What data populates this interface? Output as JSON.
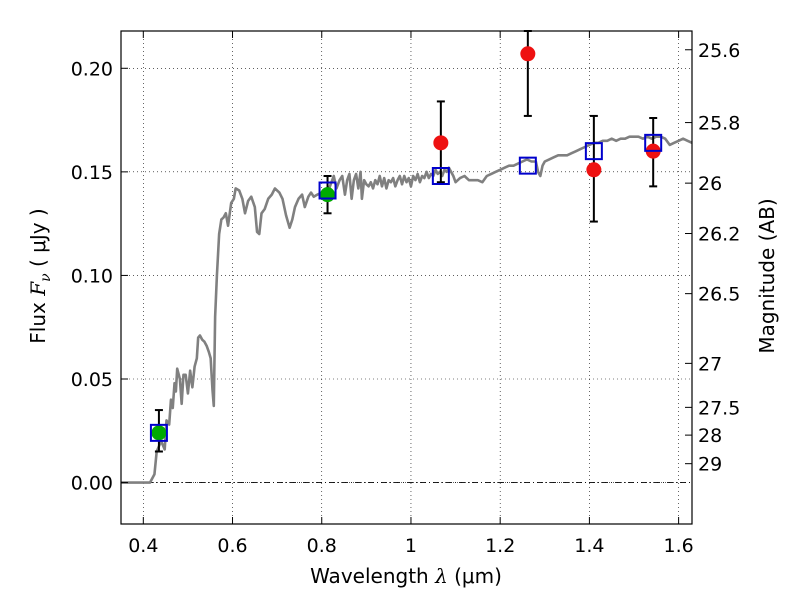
{
  "chart_data": {
    "type": "scatter",
    "xlabel_prefix": "Wavelength",
    "xlabel_symbol": "λ",
    "xlabel_unit": "(μm)",
    "ylabel_prefix": "Flux",
    "ylabel_symbol": "F",
    "ylabel_sub": "ν",
    "ylabel_unit": "( μJy )",
    "y2label": "Magnitude (AB)",
    "xlim": [
      0.35,
      1.63
    ],
    "ylim": [
      -0.02,
      0.218
    ],
    "grid": true,
    "x_ticks": [
      {
        "value": 0.4,
        "label": "0.4"
      },
      {
        "value": 0.6,
        "label": "0.6"
      },
      {
        "value": 0.8,
        "label": "0.8"
      },
      {
        "value": 1.0,
        "label": "1"
      },
      {
        "value": 1.2,
        "label": "1.2"
      },
      {
        "value": 1.4,
        "label": "1.4"
      },
      {
        "value": 1.6,
        "label": "1.6"
      }
    ],
    "y_ticks": [
      {
        "value": 0.0,
        "label": "0.00"
      },
      {
        "value": 0.05,
        "label": "0.05"
      },
      {
        "value": 0.1,
        "label": "0.10"
      },
      {
        "value": 0.15,
        "label": "0.15"
      },
      {
        "value": 0.2,
        "label": "0.20"
      }
    ],
    "y2_ticks": [
      {
        "value": 25.6,
        "label": "25.6"
      },
      {
        "value": 25.8,
        "label": "25.8"
      },
      {
        "value": 26.0,
        "label": "26"
      },
      {
        "value": 26.2,
        "label": "26.2"
      },
      {
        "value": 26.5,
        "label": "26.5"
      },
      {
        "value": 27.0,
        "label": "27"
      },
      {
        "value": 27.5,
        "label": "27.5"
      },
      {
        "value": 28.0,
        "label": "28"
      },
      {
        "value": 29.0,
        "label": "29"
      }
    ],
    "model_spectrum": {
      "color": "#808080",
      "points": [
        [
          0.35,
          0.0
        ],
        [
          0.415,
          0.0
        ],
        [
          0.425,
          0.004
        ],
        [
          0.43,
          0.015
        ],
        [
          0.44,
          0.02
        ],
        [
          0.448,
          0.016
        ],
        [
          0.452,
          0.03
        ],
        [
          0.458,
          0.028
        ],
        [
          0.462,
          0.04
        ],
        [
          0.466,
          0.036
        ],
        [
          0.47,
          0.048
        ],
        [
          0.473,
          0.044
        ],
        [
          0.476,
          0.055
        ],
        [
          0.482,
          0.05
        ],
        [
          0.486,
          0.038
        ],
        [
          0.49,
          0.052
        ],
        [
          0.495,
          0.052
        ],
        [
          0.5,
          0.043
        ],
        [
          0.505,
          0.054
        ],
        [
          0.508,
          0.049
        ],
        [
          0.51,
          0.046
        ],
        [
          0.515,
          0.056
        ],
        [
          0.52,
          0.06
        ],
        [
          0.523,
          0.07
        ],
        [
          0.527,
          0.071
        ],
        [
          0.532,
          0.069
        ],
        [
          0.537,
          0.068
        ],
        [
          0.542,
          0.066
        ],
        [
          0.547,
          0.063
        ],
        [
          0.551,
          0.06
        ],
        [
          0.555,
          0.045
        ],
        [
          0.558,
          0.037
        ],
        [
          0.561,
          0.08
        ],
        [
          0.565,
          0.1
        ],
        [
          0.57,
          0.12
        ],
        [
          0.575,
          0.127
        ],
        [
          0.58,
          0.128
        ],
        [
          0.585,
          0.13
        ],
        [
          0.59,
          0.124
        ],
        [
          0.597,
          0.135
        ],
        [
          0.603,
          0.137
        ],
        [
          0.607,
          0.142
        ],
        [
          0.615,
          0.141
        ],
        [
          0.622,
          0.137
        ],
        [
          0.628,
          0.13
        ],
        [
          0.635,
          0.136
        ],
        [
          0.642,
          0.138
        ],
        [
          0.65,
          0.133
        ],
        [
          0.655,
          0.121
        ],
        [
          0.66,
          0.12
        ],
        [
          0.665,
          0.13
        ],
        [
          0.672,
          0.132
        ],
        [
          0.68,
          0.137
        ],
        [
          0.688,
          0.139
        ],
        [
          0.695,
          0.142
        ],
        [
          0.705,
          0.14
        ],
        [
          0.712,
          0.137
        ],
        [
          0.72,
          0.129
        ],
        [
          0.728,
          0.123
        ],
        [
          0.734,
          0.127
        ],
        [
          0.74,
          0.133
        ],
        [
          0.748,
          0.137
        ],
        [
          0.756,
          0.139
        ],
        [
          0.762,
          0.133
        ],
        [
          0.77,
          0.138
        ],
        [
          0.776,
          0.14
        ],
        [
          0.782,
          0.138
        ],
        [
          0.79,
          0.139
        ],
        [
          0.8,
          0.14
        ],
        [
          0.81,
          0.142
        ],
        [
          0.815,
          0.141
        ],
        [
          0.82,
          0.144
        ],
        [
          0.827,
          0.148
        ],
        [
          0.833,
          0.142
        ],
        [
          0.84,
          0.146
        ],
        [
          0.846,
          0.148
        ],
        [
          0.852,
          0.139
        ],
        [
          0.857,
          0.146
        ],
        [
          0.862,
          0.149
        ],
        [
          0.867,
          0.137
        ],
        [
          0.872,
          0.146
        ],
        [
          0.877,
          0.149
        ],
        [
          0.882,
          0.142
        ],
        [
          0.887,
          0.15
        ],
        [
          0.89,
          0.137
        ],
        [
          0.895,
          0.146
        ],
        [
          0.9,
          0.144
        ],
        [
          0.905,
          0.143
        ],
        [
          0.91,
          0.145
        ],
        [
          0.915,
          0.142
        ],
        [
          0.92,
          0.146
        ],
        [
          0.925,
          0.144
        ],
        [
          0.93,
          0.148
        ],
        [
          0.935,
          0.143
        ],
        [
          0.94,
          0.147
        ],
        [
          0.945,
          0.142
        ],
        [
          0.95,
          0.146
        ],
        [
          0.955,
          0.145
        ],
        [
          0.96,
          0.147
        ],
        [
          0.965,
          0.143
        ],
        [
          0.97,
          0.146
        ],
        [
          0.975,
          0.148
        ],
        [
          0.98,
          0.144
        ],
        [
          0.985,
          0.148
        ],
        [
          0.99,
          0.145
        ],
        [
          0.995,
          0.147
        ],
        [
          1.0,
          0.143
        ],
        [
          1.005,
          0.148
        ],
        [
          1.01,
          0.146
        ],
        [
          1.015,
          0.149
        ],
        [
          1.02,
          0.145
        ],
        [
          1.025,
          0.148
        ],
        [
          1.03,
          0.147
        ],
        [
          1.035,
          0.15
        ],
        [
          1.04,
          0.147
        ],
        [
          1.045,
          0.149
        ],
        [
          1.05,
          0.148
        ],
        [
          1.055,
          0.151
        ],
        [
          1.06,
          0.149
        ],
        [
          1.065,
          0.15
        ],
        [
          1.07,
          0.148
        ],
        [
          1.075,
          0.151
        ],
        [
          1.08,
          0.15
        ],
        [
          1.085,
          0.152
        ],
        [
          1.09,
          0.15
        ],
        [
          1.095,
          0.148
        ],
        [
          1.1,
          0.145
        ],
        [
          1.11,
          0.147
        ],
        [
          1.12,
          0.148
        ],
        [
          1.13,
          0.146
        ],
        [
          1.14,
          0.146
        ],
        [
          1.15,
          0.146
        ],
        [
          1.16,
          0.145
        ],
        [
          1.17,
          0.148
        ],
        [
          1.18,
          0.149
        ],
        [
          1.19,
          0.15
        ],
        [
          1.2,
          0.151
        ],
        [
          1.21,
          0.152
        ],
        [
          1.22,
          0.153
        ],
        [
          1.23,
          0.153
        ],
        [
          1.24,
          0.154
        ],
        [
          1.25,
          0.155
        ],
        [
          1.26,
          0.156
        ],
        [
          1.27,
          0.155
        ],
        [
          1.28,
          0.155
        ],
        [
          1.285,
          0.15
        ],
        [
          1.29,
          0.148
        ],
        [
          1.295,
          0.153
        ],
        [
          1.3,
          0.155
        ],
        [
          1.31,
          0.156
        ],
        [
          1.32,
          0.157
        ],
        [
          1.33,
          0.158
        ],
        [
          1.34,
          0.158
        ],
        [
          1.35,
          0.158
        ],
        [
          1.36,
          0.159
        ],
        [
          1.37,
          0.16
        ],
        [
          1.38,
          0.161
        ],
        [
          1.39,
          0.162
        ],
        [
          1.4,
          0.163
        ],
        [
          1.41,
          0.164
        ],
        [
          1.42,
          0.164
        ],
        [
          1.43,
          0.165
        ],
        [
          1.44,
          0.165
        ],
        [
          1.45,
          0.166
        ],
        [
          1.46,
          0.165
        ],
        [
          1.47,
          0.166
        ],
        [
          1.48,
          0.166
        ],
        [
          1.49,
          0.167
        ],
        [
          1.5,
          0.167
        ],
        [
          1.51,
          0.167
        ],
        [
          1.52,
          0.166
        ],
        [
          1.53,
          0.167
        ],
        [
          1.54,
          0.166
        ],
        [
          1.55,
          0.167
        ],
        [
          1.56,
          0.167
        ],
        [
          1.57,
          0.166
        ],
        [
          1.58,
          0.163
        ],
        [
          1.59,
          0.164
        ],
        [
          1.6,
          0.165
        ],
        [
          1.61,
          0.166
        ],
        [
          1.62,
          0.165
        ],
        [
          1.63,
          0.164
        ]
      ]
    },
    "model_photometry": {
      "color": "#0000cc",
      "marker": "open-square",
      "points": [
        [
          0.435,
          0.024
        ],
        [
          0.813,
          0.141
        ],
        [
          1.067,
          0.148
        ],
        [
          1.262,
          0.153
        ],
        [
          1.41,
          0.16
        ],
        [
          1.543,
          0.164
        ]
      ]
    },
    "observed_green": {
      "color": "#00aa00",
      "marker": "filled-circle",
      "points": [
        {
          "x": 0.435,
          "y": 0.024,
          "err_low": 0.015,
          "err_high": 0.035
        },
        {
          "x": 0.813,
          "y": 0.139,
          "err_low": 0.13,
          "err_high": 0.148
        }
      ]
    },
    "observed_red": {
      "color": "#ee1111",
      "marker": "filled-circle",
      "points": [
        {
          "x": 1.067,
          "y": 0.164,
          "err_low": 0.145,
          "err_high": 0.184
        },
        {
          "x": 1.262,
          "y": 0.207,
          "err_low": 0.177,
          "err_high": 0.218
        },
        {
          "x": 1.41,
          "y": 0.151,
          "err_low": 0.126,
          "err_high": 0.177
        },
        {
          "x": 1.543,
          "y": 0.16,
          "err_low": 0.143,
          "err_high": 0.176
        }
      ]
    }
  }
}
